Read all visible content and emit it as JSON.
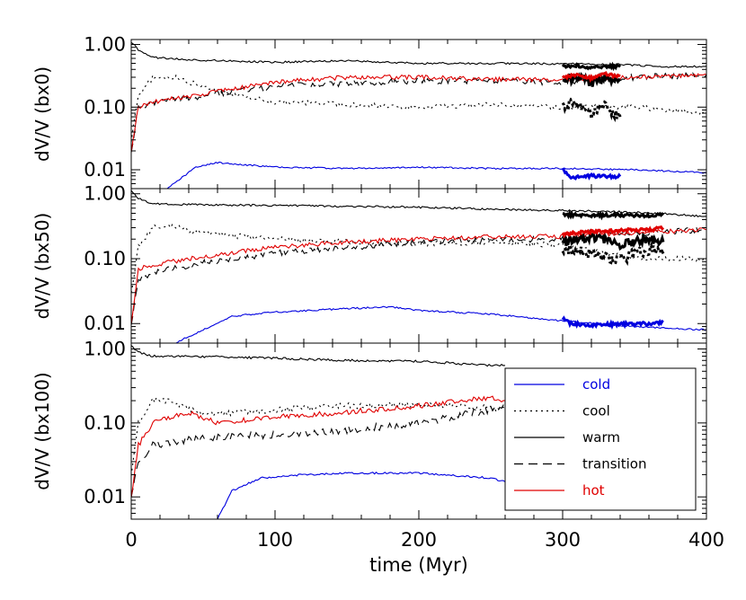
{
  "chart_data": {
    "type": "line",
    "x_label": "time (Myr)",
    "x_ticks": [
      "0",
      "100",
      "200",
      "300",
      "400"
    ],
    "x_range": [
      0,
      400
    ],
    "y_scale": "log",
    "y_range": [
      0.005,
      1.2
    ],
    "y_ticks": [
      "1.00",
      "0.10",
      "0.01"
    ],
    "panels": [
      {
        "ylabel": "dV/V (bx0)",
        "series": [
          {
            "name": "warm",
            "style": "solid",
            "color": "#000000",
            "t": [
              0,
              5,
              15,
              40,
              100,
              150,
              200,
              250,
              300,
              340,
              370,
              400
            ],
            "v": [
              1.1,
              0.82,
              0.62,
              0.57,
              0.52,
              0.55,
              0.5,
              0.5,
              0.49,
              0.48,
              0.44,
              0.45
            ]
          },
          {
            "name": "cool",
            "style": "dotted",
            "color": "#000000",
            "t": [
              0,
              5,
              15,
              30,
              60,
              100,
              150,
              200,
              250,
              300,
              350,
              400
            ],
            "v": [
              0.03,
              0.15,
              0.3,
              0.3,
              0.18,
              0.12,
              0.11,
              0.1,
              0.11,
              0.1,
              0.1,
              0.08
            ]
          },
          {
            "name": "transition",
            "style": "dashed",
            "color": "#000000",
            "t": [
              0,
              5,
              15,
              40,
              100,
              150,
              200,
              250,
              300,
              350,
              400
            ],
            "v": [
              0.02,
              0.1,
              0.12,
              0.14,
              0.22,
              0.24,
              0.26,
              0.27,
              0.25,
              0.3,
              0.33
            ]
          },
          {
            "name": "hot",
            "style": "solid",
            "color": "#e00000",
            "t": [
              0,
              5,
              15,
              40,
              100,
              150,
              200,
              250,
              300,
              350,
              400
            ],
            "v": [
              0.02,
              0.1,
              0.12,
              0.15,
              0.25,
              0.3,
              0.3,
              0.28,
              0.27,
              0.3,
              0.33
            ]
          },
          {
            "name": "cold",
            "style": "solid",
            "color": "#0000e0",
            "t": [
              25,
              45,
              60,
              100,
              150,
              200,
              250,
              300,
              350,
              400
            ],
            "v": [
              0.005,
              0.011,
              0.013,
              0.011,
              0.0105,
              0.011,
              0.0105,
              0.0105,
              0.01,
              0.009
            ]
          }
        ],
        "bold_series": [
          {
            "name": "warm",
            "color": "#000000",
            "t": [
              300,
              310,
              320,
              330,
              340
            ],
            "v": [
              0.44,
              0.46,
              0.43,
              0.45,
              0.44
            ]
          },
          {
            "name": "transition",
            "color": "#000000",
            "t": [
              300,
              310,
              320,
              330,
              340
            ],
            "v": [
              0.26,
              0.3,
              0.24,
              0.28,
              0.26
            ]
          },
          {
            "name": "hot",
            "color": "#e00000",
            "t": [
              300,
              310,
              320,
              330,
              340
            ],
            "v": [
              0.3,
              0.33,
              0.29,
              0.34,
              0.31
            ]
          },
          {
            "name": "cool",
            "color": "#000000",
            "t": [
              300,
              310,
              320,
              330,
              340
            ],
            "v": [
              0.1,
              0.12,
              0.08,
              0.1,
              0.07
            ]
          },
          {
            "name": "cold",
            "color": "#0000e0",
            "t": [
              300,
              305,
              320,
              330,
              340
            ],
            "v": [
              0.01,
              0.0075,
              0.008,
              0.0078,
              0.0078
            ]
          }
        ]
      },
      {
        "ylabel": "dV/V (bx50)",
        "series": [
          {
            "name": "warm",
            "style": "solid",
            "color": "#000000",
            "t": [
              0,
              5,
              15,
              40,
              100,
              150,
              200,
              250,
              300,
              350,
              400
            ],
            "v": [
              1.1,
              0.85,
              0.7,
              0.68,
              0.66,
              0.64,
              0.62,
              0.58,
              0.55,
              0.52,
              0.45
            ]
          },
          {
            "name": "cool",
            "style": "dotted",
            "color": "#000000",
            "t": [
              0,
              5,
              15,
              25,
              50,
              100,
              150,
              200,
              250,
              300,
              350,
              400
            ],
            "v": [
              0.03,
              0.15,
              0.3,
              0.32,
              0.25,
              0.2,
              0.18,
              0.17,
              0.18,
              0.16,
              0.1,
              0.1
            ]
          },
          {
            "name": "transition",
            "style": "dashed",
            "color": "#000000",
            "t": [
              0,
              5,
              15,
              40,
              100,
              150,
              200,
              250,
              300,
              350,
              400
            ],
            "v": [
              0.01,
              0.05,
              0.06,
              0.08,
              0.12,
              0.15,
              0.18,
              0.2,
              0.2,
              0.25,
              0.28
            ]
          },
          {
            "name": "hot",
            "style": "solid",
            "color": "#e00000",
            "t": [
              0,
              5,
              15,
              40,
              100,
              150,
              200,
              250,
              300,
              350,
              400
            ],
            "v": [
              0.01,
              0.07,
              0.08,
              0.1,
              0.15,
              0.18,
              0.2,
              0.22,
              0.22,
              0.25,
              0.28
            ]
          },
          {
            "name": "cold",
            "style": "solid",
            "color": "#0000e0",
            "t": [
              30,
              50,
              70,
              100,
              150,
              180,
              200,
              250,
              300,
              350,
              400
            ],
            "v": [
              0.005,
              0.008,
              0.013,
              0.015,
              0.017,
              0.018,
              0.016,
              0.014,
              0.011,
              0.009,
              0.008
            ]
          }
        ],
        "bold_series": [
          {
            "name": "warm",
            "color": "#000000",
            "t": [
              300,
              320,
              340,
              360,
              370
            ],
            "v": [
              0.48,
              0.46,
              0.47,
              0.46,
              0.47
            ]
          },
          {
            "name": "transition",
            "color": "#000000",
            "t": [
              300,
              320,
              340,
              360,
              370
            ],
            "v": [
              0.18,
              0.22,
              0.16,
              0.2,
              0.18
            ]
          },
          {
            "name": "hot",
            "color": "#e00000",
            "t": [
              300,
              320,
              340,
              360,
              370
            ],
            "v": [
              0.24,
              0.26,
              0.27,
              0.28,
              0.3
            ]
          },
          {
            "name": "cool",
            "color": "#000000",
            "t": [
              300,
              320,
              340,
              360,
              370
            ],
            "v": [
              0.15,
              0.12,
              0.1,
              0.14,
              0.12
            ]
          },
          {
            "name": "cold",
            "color": "#0000e0",
            "t": [
              300,
              305,
              320,
              340,
              360,
              370
            ],
            "v": [
              0.012,
              0.01,
              0.0095,
              0.0098,
              0.01,
              0.0105
            ]
          }
        ]
      },
      {
        "ylabel": "dV/V (bx100)",
        "series": [
          {
            "name": "warm",
            "style": "solid",
            "color": "#000000",
            "t": [
              0,
              5,
              15,
              40,
              100,
              150,
              200,
              250,
              260
            ],
            "v": [
              1.1,
              0.9,
              0.8,
              0.8,
              0.75,
              0.7,
              0.68,
              0.6,
              0.6
            ]
          },
          {
            "name": "cool",
            "style": "dotted",
            "color": "#000000",
            "t": [
              0,
              5,
              15,
              25,
              50,
              100,
              150,
              200,
              250,
              260
            ],
            "v": [
              0.02,
              0.1,
              0.2,
              0.2,
              0.13,
              0.15,
              0.17,
              0.18,
              0.16,
              0.15
            ]
          },
          {
            "name": "transition",
            "style": "dashed",
            "color": "#000000",
            "t": [
              0,
              5,
              15,
              40,
              100,
              150,
              200,
              250,
              260
            ],
            "v": [
              0.01,
              0.03,
              0.05,
              0.06,
              0.07,
              0.08,
              0.1,
              0.15,
              0.16
            ]
          },
          {
            "name": "hot",
            "style": "solid",
            "color": "#e00000",
            "t": [
              0,
              5,
              15,
              40,
              60,
              100,
              150,
              200,
              250,
              260
            ],
            "v": [
              0.01,
              0.05,
              0.1,
              0.14,
              0.1,
              0.12,
              0.14,
              0.17,
              0.22,
              0.2
            ]
          },
          {
            "name": "cold",
            "style": "solid",
            "color": "#0000e0",
            "t": [
              60,
              70,
              90,
              120,
              150,
              180,
              200,
              250,
              260
            ],
            "v": [
              0.005,
              0.012,
              0.018,
              0.02,
              0.021,
              0.021,
              0.021,
              0.018,
              0.016
            ]
          }
        ],
        "bold_series": []
      }
    ],
    "legend": {
      "placement": "inside-bottom-right",
      "entries": [
        {
          "label": "cold",
          "style": "solid",
          "color": "#0000e0"
        },
        {
          "label": "cool",
          "style": "dotted",
          "color": "#000000"
        },
        {
          "label": "warm",
          "style": "solid",
          "color": "#000000"
        },
        {
          "label": "transition",
          "style": "dashed",
          "color": "#000000"
        },
        {
          "label": "hot",
          "style": "solid",
          "color": "#e00000"
        }
      ]
    }
  }
}
